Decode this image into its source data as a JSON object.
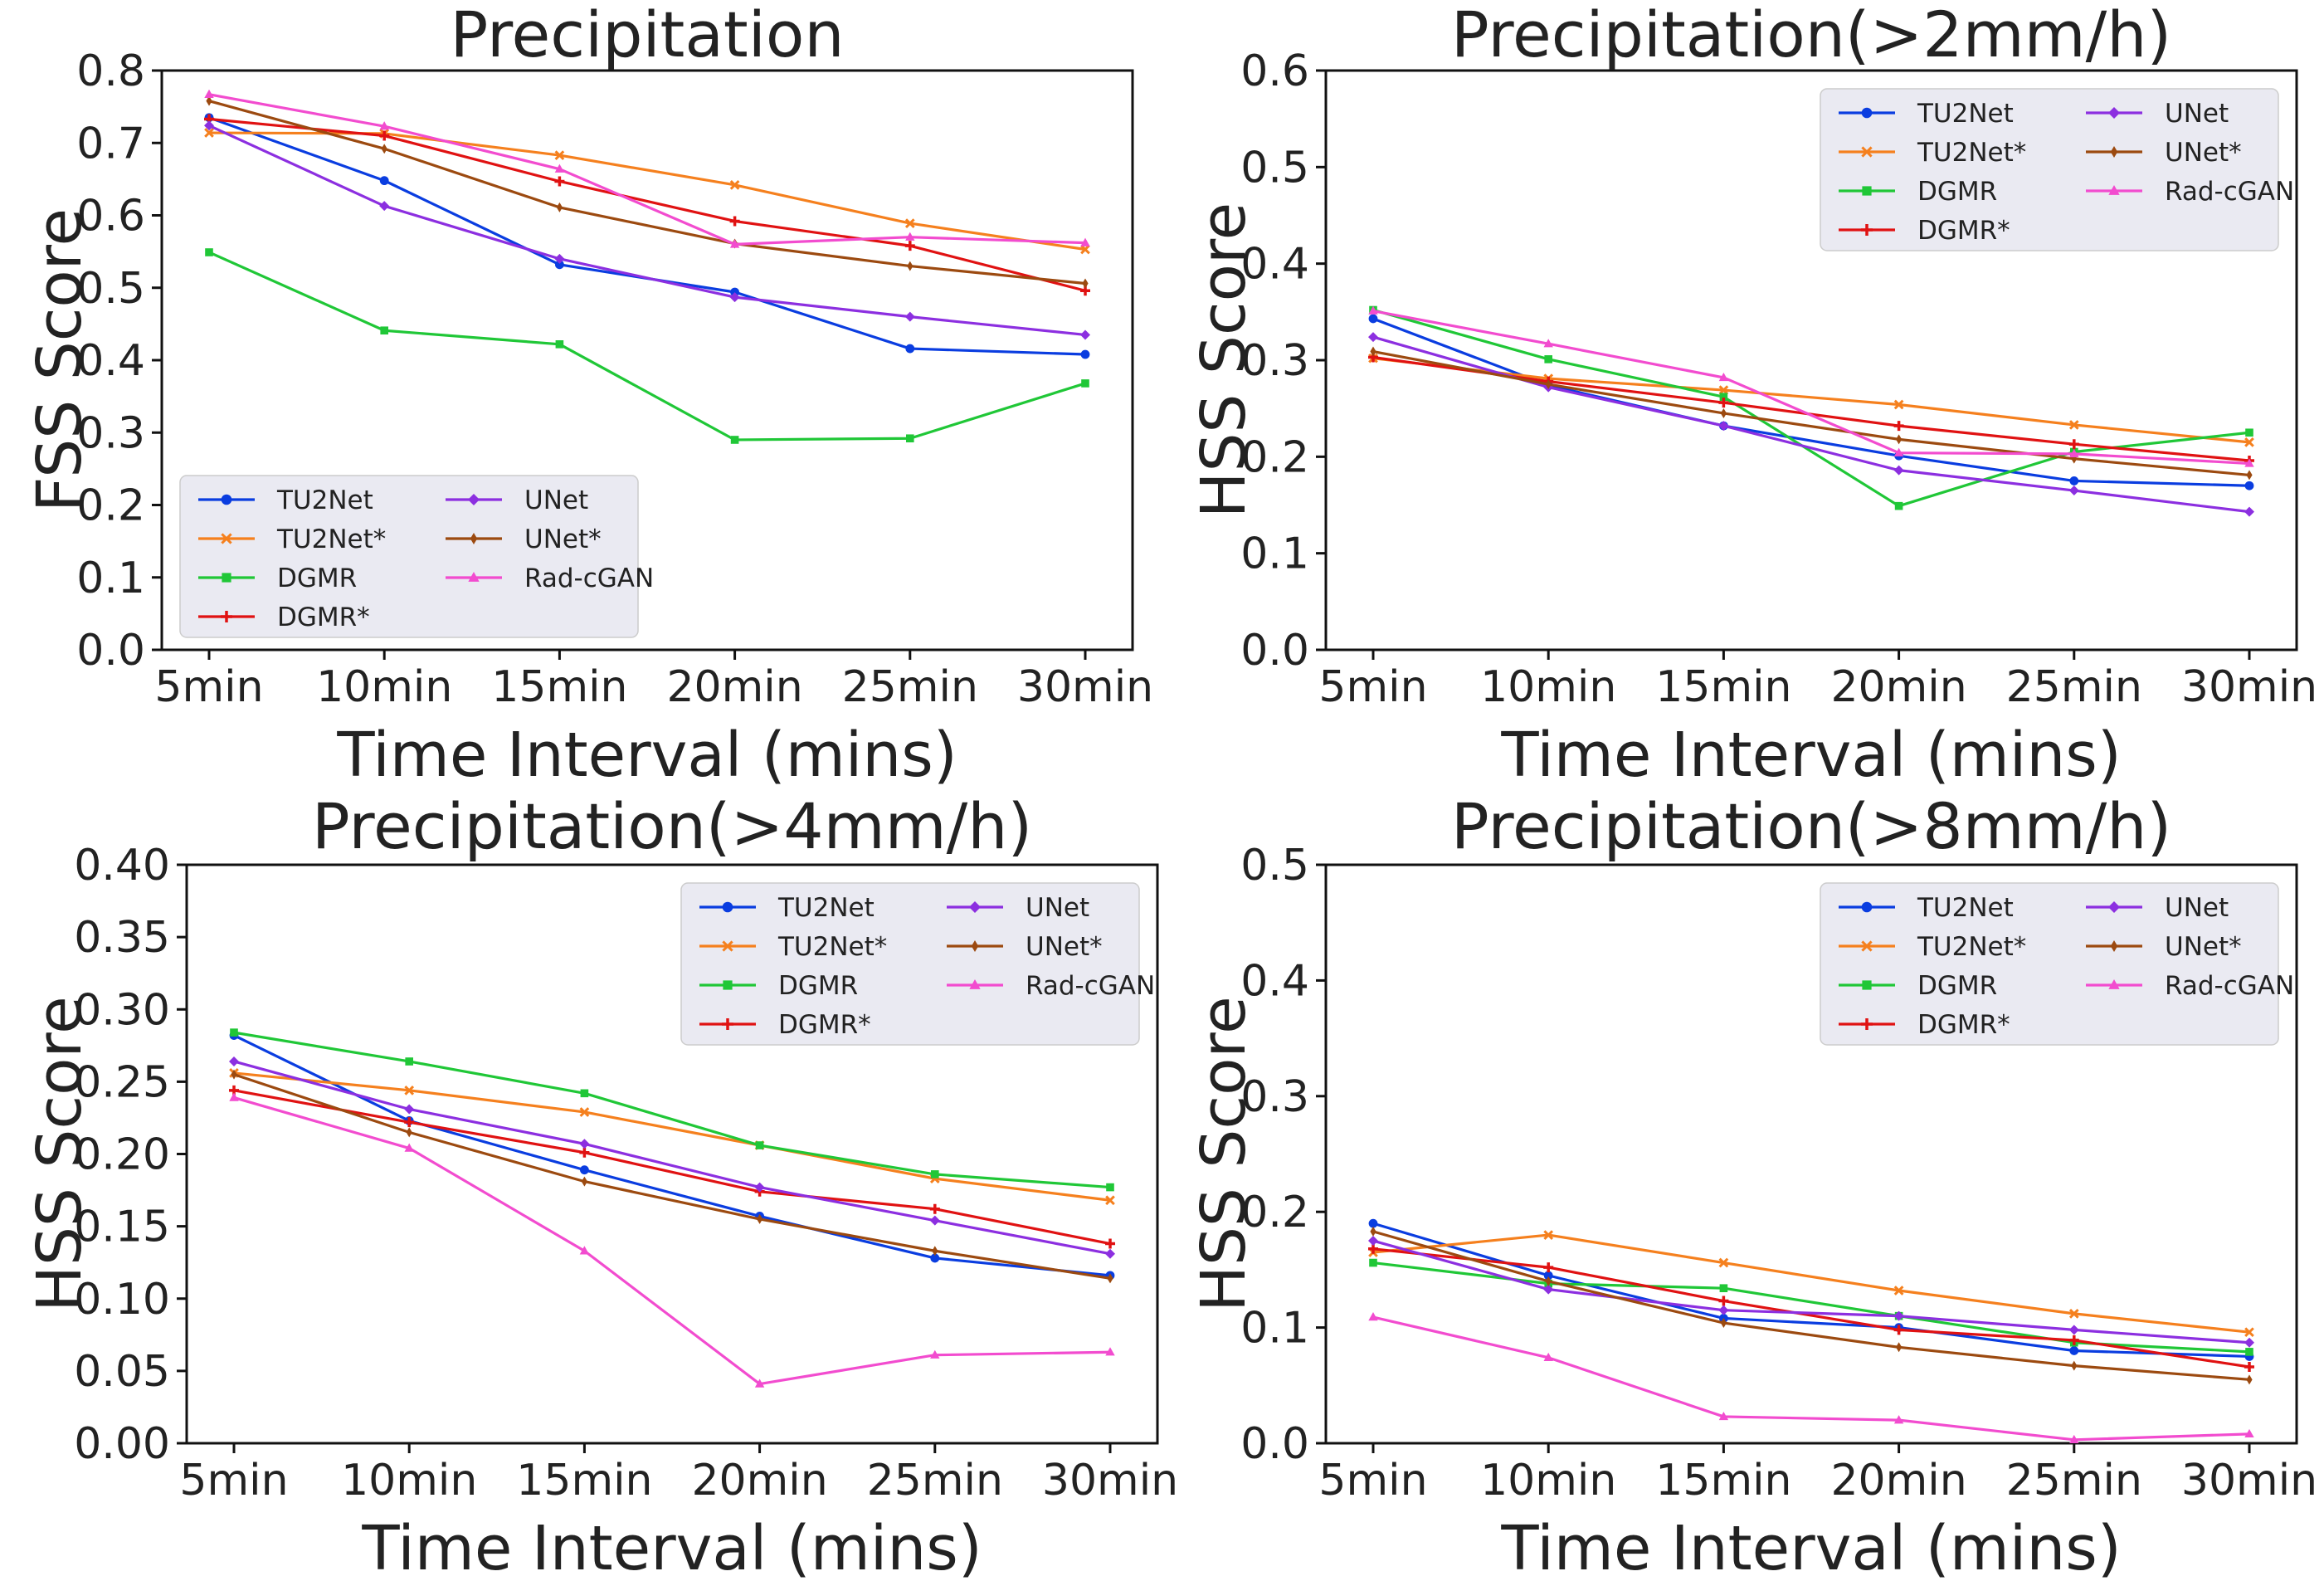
{
  "colors": {
    "TU2Net": "#0a3de0",
    "TU2Net*": "#f5801e",
    "DGMR": "#20c737",
    "DGMR*": "#e01212",
    "UNet": "#8c2fe0",
    "UNet*": "#9c4a10",
    "Rad-cGAN": "#f24ccf"
  },
  "markers": {
    "TU2Net": "circle",
    "TU2Net*": "x",
    "DGMR": "square",
    "DGMR*": "plus",
    "UNet": "diamond",
    "UNet*": "thin-diamond",
    "Rad-cGAN": "triangle"
  },
  "chart_data": [
    {
      "type": "line",
      "title": "Precipitation",
      "xlabel": "Time Interval (mins)",
      "ylabel": "FSS Score",
      "categories": [
        "5min",
        "10min",
        "15min",
        "20min",
        "25min",
        "30min"
      ],
      "ylim": [
        0,
        0.8
      ],
      "yticks": [
        0.0,
        0.1,
        0.2,
        0.3,
        0.4,
        0.5,
        0.6,
        0.7,
        0.8
      ],
      "ytick_labels": [
        "0.0",
        "0.1",
        "0.2",
        "0.3",
        "0.4",
        "0.5",
        "0.6",
        "0.7",
        "0.8"
      ],
      "legend": "bottom-left",
      "grid": false,
      "series": [
        {
          "name": "TU2Net",
          "values": [
            0.735,
            0.648,
            0.532,
            0.494,
            0.416,
            0.408
          ]
        },
        {
          "name": "TU2Net*",
          "values": [
            0.714,
            0.713,
            0.683,
            0.642,
            0.589,
            0.553
          ]
        },
        {
          "name": "DGMR",
          "values": [
            0.549,
            0.441,
            0.422,
            0.29,
            0.292,
            0.368
          ]
        },
        {
          "name": "DGMR*",
          "values": [
            0.733,
            0.71,
            0.647,
            0.592,
            0.558,
            0.496
          ]
        },
        {
          "name": "UNet",
          "values": [
            0.724,
            0.613,
            0.54,
            0.487,
            0.46,
            0.435
          ]
        },
        {
          "name": "UNet*",
          "values": [
            0.758,
            0.692,
            0.611,
            0.561,
            0.53,
            0.506
          ]
        },
        {
          "name": "Rad-cGAN",
          "values": [
            0.767,
            0.723,
            0.664,
            0.56,
            0.57,
            0.562
          ]
        }
      ]
    },
    {
      "type": "line",
      "title": "Precipitation(>2mm/h)",
      "xlabel": "Time Interval (mins)",
      "ylabel": "HSS Score",
      "categories": [
        "5min",
        "10min",
        "15min",
        "20min",
        "25min",
        "30min"
      ],
      "ylim": [
        0,
        0.6
      ],
      "yticks": [
        0.0,
        0.1,
        0.2,
        0.3,
        0.4,
        0.5,
        0.6
      ],
      "ytick_labels": [
        "0.0",
        "0.1",
        "0.2",
        "0.3",
        "0.4",
        "0.5",
        "0.6"
      ],
      "legend": "top-right",
      "grid": false,
      "series": [
        {
          "name": "TU2Net",
          "values": [
            0.343,
            0.274,
            0.232,
            0.201,
            0.175,
            0.17
          ]
        },
        {
          "name": "TU2Net*",
          "values": [
            0.302,
            0.281,
            0.269,
            0.254,
            0.233,
            0.215
          ]
        },
        {
          "name": "DGMR",
          "values": [
            0.352,
            0.301,
            0.262,
            0.149,
            0.205,
            0.225
          ]
        },
        {
          "name": "DGMR*",
          "values": [
            0.303,
            0.278,
            0.256,
            0.232,
            0.213,
            0.196
          ]
        },
        {
          "name": "UNet",
          "values": [
            0.324,
            0.272,
            0.232,
            0.186,
            0.165,
            0.143
          ]
        },
        {
          "name": "UNet*",
          "values": [
            0.309,
            0.275,
            0.245,
            0.218,
            0.198,
            0.181
          ]
        },
        {
          "name": "Rad-cGAN",
          "values": [
            0.351,
            0.317,
            0.282,
            0.204,
            0.203,
            0.193
          ]
        }
      ]
    },
    {
      "type": "line",
      "title": "Precipitation(>4mm/h)",
      "xlabel": "Time Interval (mins)",
      "ylabel": "HSS Score",
      "categories": [
        "5min",
        "10min",
        "15min",
        "20min",
        "25min",
        "30min"
      ],
      "ylim": [
        0,
        0.4
      ],
      "yticks": [
        0.0,
        0.05,
        0.1,
        0.15,
        0.2,
        0.25,
        0.3,
        0.35,
        0.4
      ],
      "ytick_labels": [
        "0.00",
        "0.05",
        "0.10",
        "0.15",
        "0.20",
        "0.25",
        "0.30",
        "0.35",
        "0.40"
      ],
      "legend": "top-right",
      "grid": false,
      "series": [
        {
          "name": "TU2Net",
          "values": [
            0.282,
            0.223,
            0.189,
            0.157,
            0.128,
            0.116
          ]
        },
        {
          "name": "TU2Net*",
          "values": [
            0.256,
            0.244,
            0.229,
            0.206,
            0.183,
            0.168
          ]
        },
        {
          "name": "DGMR",
          "values": [
            0.284,
            0.264,
            0.242,
            0.206,
            0.186,
            0.177
          ]
        },
        {
          "name": "DGMR*",
          "values": [
            0.244,
            0.222,
            0.201,
            0.174,
            0.162,
            0.138
          ]
        },
        {
          "name": "UNet",
          "values": [
            0.264,
            0.231,
            0.207,
            0.177,
            0.154,
            0.131
          ]
        },
        {
          "name": "UNet*",
          "values": [
            0.255,
            0.215,
            0.181,
            0.155,
            0.133,
            0.114
          ]
        },
        {
          "name": "Rad-cGAN",
          "values": [
            0.239,
            0.204,
            0.133,
            0.041,
            0.061,
            0.063
          ]
        }
      ]
    },
    {
      "type": "line",
      "title": "Precipitation(>8mm/h)",
      "xlabel": "Time Interval (mins)",
      "ylabel": "HSS Score",
      "categories": [
        "5min",
        "10min",
        "15min",
        "20min",
        "25min",
        "30min"
      ],
      "ylim": [
        0,
        0.5
      ],
      "yticks": [
        0.0,
        0.1,
        0.2,
        0.3,
        0.4,
        0.5
      ],
      "ytick_labels": [
        "0.0",
        "0.1",
        "0.2",
        "0.3",
        "0.4",
        "0.5"
      ],
      "legend": "top-right",
      "grid": false,
      "series": [
        {
          "name": "TU2Net",
          "values": [
            0.19,
            0.145,
            0.108,
            0.1,
            0.08,
            0.075
          ]
        },
        {
          "name": "TU2Net*",
          "values": [
            0.165,
            0.18,
            0.156,
            0.132,
            0.112,
            0.096
          ]
        },
        {
          "name": "DGMR",
          "values": [
            0.156,
            0.138,
            0.134,
            0.11,
            0.087,
            0.079
          ]
        },
        {
          "name": "DGMR*",
          "values": [
            0.168,
            0.152,
            0.123,
            0.098,
            0.089,
            0.066
          ]
        },
        {
          "name": "UNet",
          "values": [
            0.175,
            0.133,
            0.115,
            0.11,
            0.098,
            0.087
          ]
        },
        {
          "name": "UNet*",
          "values": [
            0.183,
            0.14,
            0.104,
            0.083,
            0.067,
            0.055
          ]
        },
        {
          "name": "Rad-cGAN",
          "values": [
            0.109,
            0.074,
            0.023,
            0.02,
            0.003,
            0.008
          ]
        }
      ]
    }
  ]
}
